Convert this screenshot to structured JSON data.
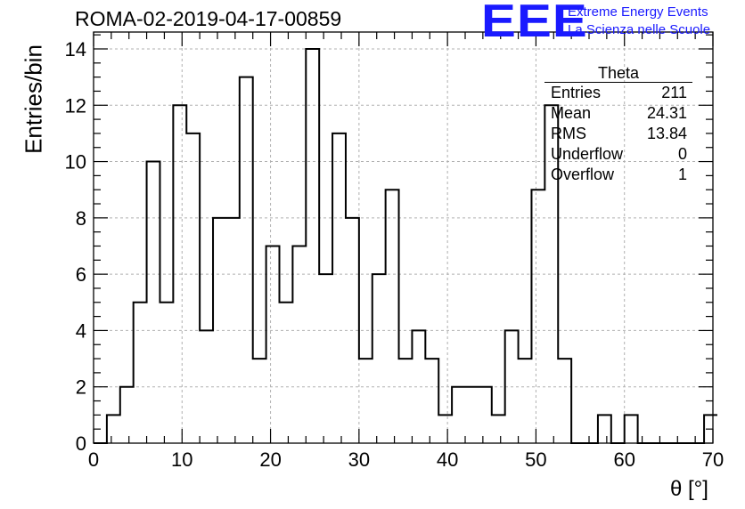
{
  "header": {
    "title": "ROMA-02-2019-04-17-00859",
    "logo": "EEE",
    "logo_line1": "Extreme Energy Events",
    "logo_line2": "La Scienza nelle Scuole"
  },
  "stats": {
    "title": "Theta",
    "rows": [
      {
        "label": "Entries",
        "value": "211"
      },
      {
        "label": "Mean",
        "value": "24.31"
      },
      {
        "label": "RMS",
        "value": "13.84"
      },
      {
        "label": "Underflow",
        "value": "0"
      },
      {
        "label": "Overflow",
        "value": "1"
      }
    ]
  },
  "chart_data": {
    "type": "histogram",
    "xlabel": "θ [°]",
    "ylabel": "Entries/bin",
    "xlim": [
      0,
      70
    ],
    "ylim": [
      0,
      14.6
    ],
    "xticks": [
      0,
      10,
      20,
      30,
      40,
      50,
      60,
      70
    ],
    "yticks": [
      0,
      2,
      4,
      6,
      8,
      10,
      12,
      14
    ],
    "grid": true,
    "bin_width": 1.5,
    "bin_start": 0,
    "values": [
      0,
      1,
      2,
      5,
      10,
      5,
      12,
      11,
      4,
      8,
      8,
      13,
      3,
      7,
      5,
      7,
      14,
      6,
      11,
      8,
      3,
      6,
      9,
      3,
      4,
      3,
      1,
      2,
      2,
      2,
      1,
      4,
      3,
      9,
      12,
      3,
      0,
      0,
      1,
      0,
      1,
      0,
      0,
      0,
      0,
      0,
      1
    ],
    "colors": {
      "line": "#000000",
      "grid": "#b0b0b0",
      "logo": "#1a1aff"
    }
  }
}
